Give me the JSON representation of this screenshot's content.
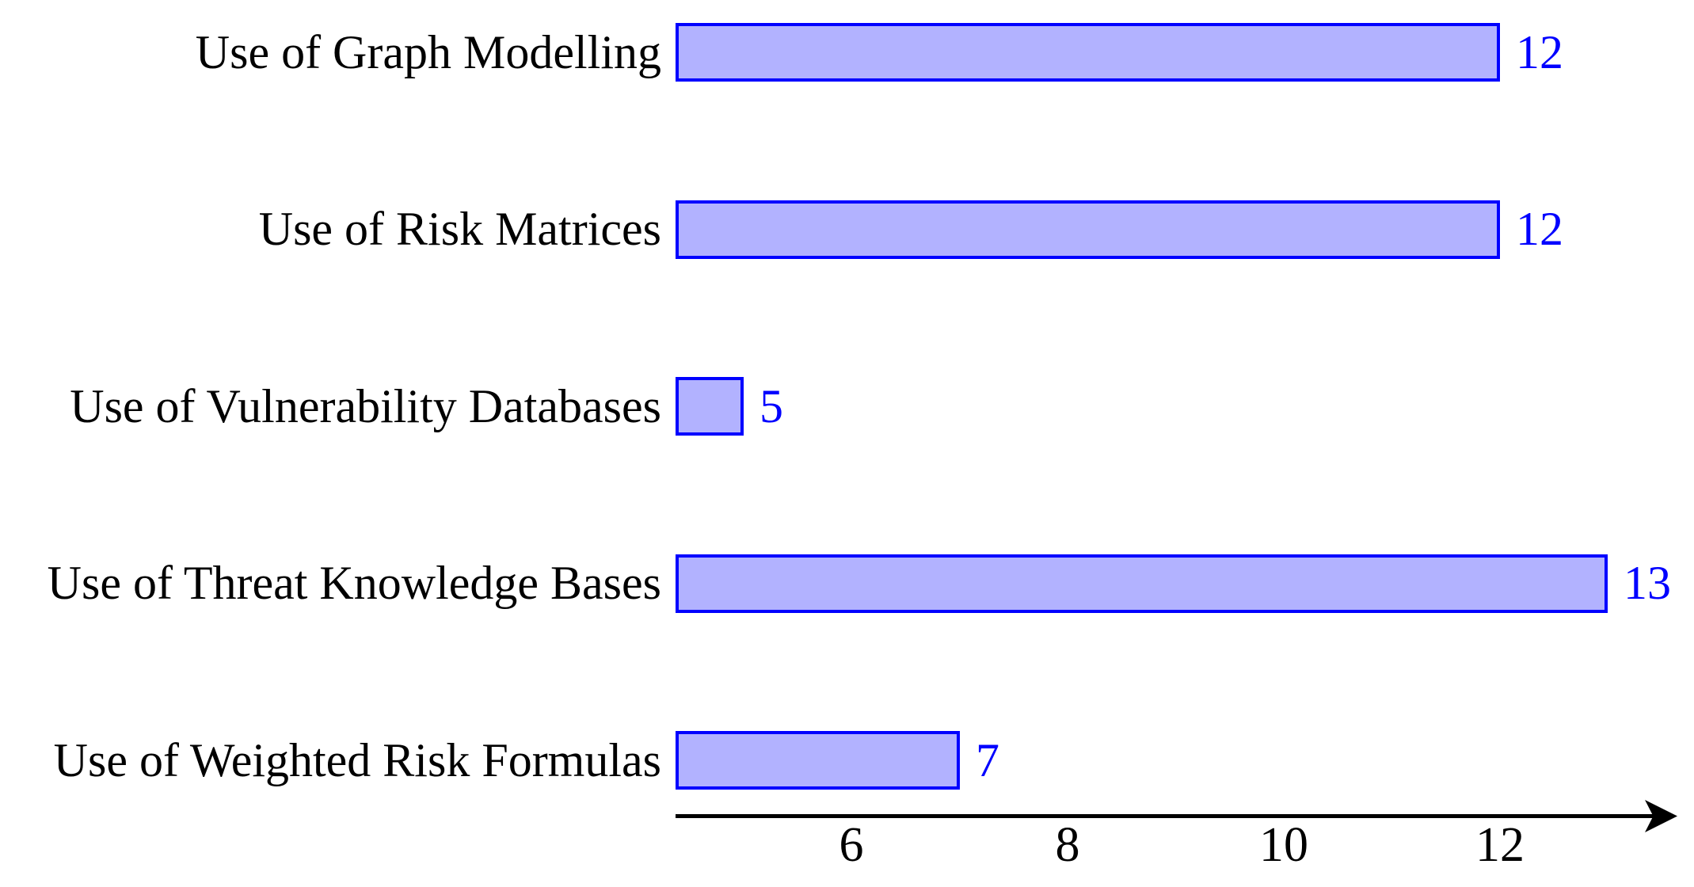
{
  "chart_data": {
    "type": "bar",
    "orientation": "horizontal",
    "title": "",
    "xlabel": "",
    "ylabel": "",
    "categories": [
      "Use of Graph Modelling",
      "Use of Risk Matrices",
      "Use of Vulnerability Databases",
      "Use of Threat Knowledge Bases",
      "Use of Weighted Risk Formulas"
    ],
    "values": [
      12,
      12,
      5,
      13,
      7
    ],
    "value_labels_shown": true,
    "x_ticks": [
      6,
      8,
      10,
      12
    ],
    "xlim": [
      4.37,
      13.64
    ],
    "grid": false,
    "legend": "none",
    "axis_arrow": "right",
    "colors": {
      "bar_fill": "#B2B2FF",
      "bar_border": "#0000FF",
      "value_label": "#0000FF",
      "category_label": "#000000",
      "axis": "#000000"
    }
  }
}
